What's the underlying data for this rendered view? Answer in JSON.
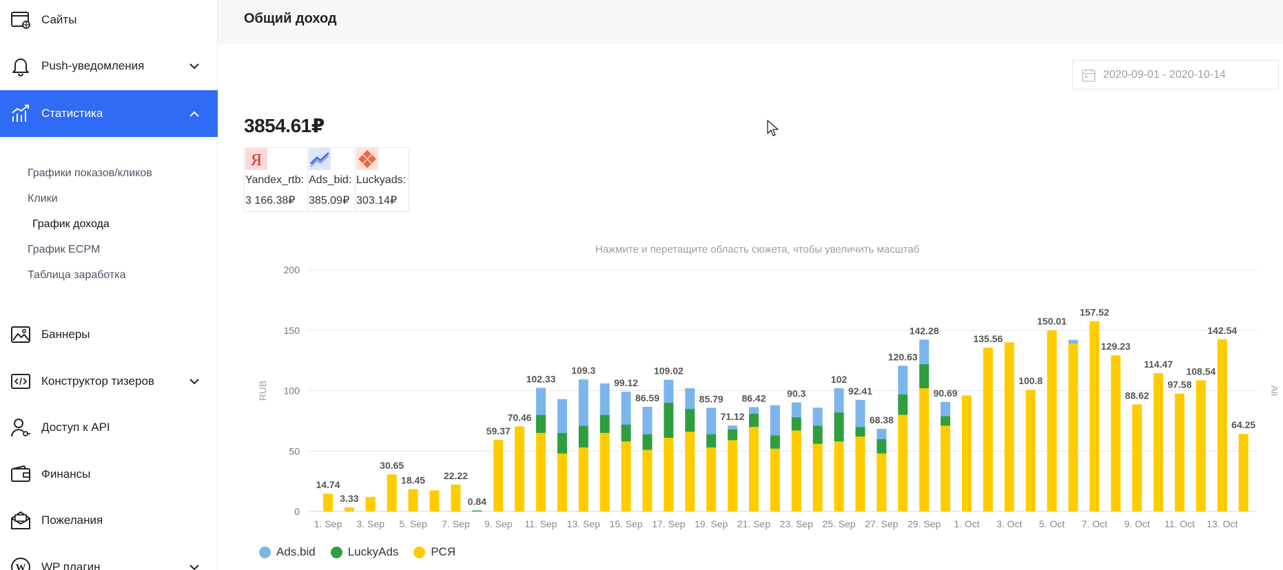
{
  "sidebar": {
    "top_items": [
      {
        "label": "Сайты",
        "icon": "site-globe-icon",
        "has_chevron": false
      },
      {
        "label": "Push-уведомления",
        "icon": "bell-icon",
        "has_chevron": true
      },
      {
        "label": "Статистика",
        "icon": "stats-chart-icon",
        "has_chevron": true,
        "active": true
      }
    ],
    "sub_items": [
      {
        "label": "Графики показов/кликов"
      },
      {
        "label": "Клики"
      },
      {
        "label": "График дохода",
        "active": true
      },
      {
        "label": "График ECPM"
      },
      {
        "label": "Таблица заработка"
      }
    ],
    "bottom_items": [
      {
        "label": "Баннеры",
        "icon": "image-icon",
        "has_chevron": false
      },
      {
        "label": "Конструктор тизеров",
        "icon": "code-window-icon",
        "has_chevron": true
      },
      {
        "label": "Доступ к API",
        "icon": "user-key-icon",
        "has_chevron": false
      },
      {
        "label": "Финансы",
        "icon": "wallet-icon",
        "has_chevron": false
      },
      {
        "label": "Пожелания",
        "icon": "mail-icon",
        "has_chevron": false
      },
      {
        "label": "WP плагин",
        "icon": "wordpress-icon",
        "has_chevron": true
      }
    ],
    "accent_color": "#2f6bf4"
  },
  "header": {
    "title": "Общий доход"
  },
  "date_range": {
    "value": "2020-09-01 - 2020-10-14"
  },
  "summary": {
    "total": "3854.61₽",
    "sources": [
      {
        "name": "Yandex_rtb:",
        "value": "3 166.38₽",
        "icon": "yandex-logo-icon"
      },
      {
        "name": "Ads_bid:",
        "value": "385.09₽",
        "icon": "adsbid-logo-icon"
      },
      {
        "name": "Luckyads:",
        "value": "303.14₽",
        "icon": "luckyads-logo-icon"
      }
    ]
  },
  "chart_hint": "Нажмите и перетащите область сюжета, чтобы увеличить масштаб",
  "chart_data": {
    "type": "bar",
    "stacked": true,
    "ylabel": "RUB",
    "right_label": "All",
    "ylim": [
      0,
      200
    ],
    "yticks": [
      0,
      50,
      100,
      150,
      200
    ],
    "grid": true,
    "legend_position": "bottom-left",
    "categories": [
      "1. Sep",
      "2. Sep",
      "3. Sep",
      "4. Sep",
      "5. Sep",
      "6. Sep",
      "7. Sep",
      "8. Sep",
      "9. Sep",
      "10. Sep",
      "11. Sep",
      "12. Sep",
      "13. Sep",
      "14. Sep",
      "15. Sep",
      "16. Sep",
      "17. Sep",
      "18. Sep",
      "19. Sep",
      "20. Sep",
      "21. Sep",
      "22. Sep",
      "23. Sep",
      "24. Sep",
      "25. Sep",
      "26. Sep",
      "27. Sep",
      "28. Sep",
      "29. Sep",
      "30. Sep",
      "1. Oct",
      "2. Oct",
      "3. Oct",
      "4. Oct",
      "5. Oct",
      "6. Oct",
      "7. Oct",
      "8. Oct",
      "9. Oct",
      "10. Oct",
      "11. Oct",
      "12. Oct",
      "13. Oct",
      "14. Oct"
    ],
    "x_tick_labels": [
      "1. Sep",
      "3. Sep",
      "5. Sep",
      "7. Sep",
      "9. Sep",
      "11. Sep",
      "13. Sep",
      "15. Sep",
      "17. Sep",
      "19. Sep",
      "21. Sep",
      "23. Sep",
      "25. Sep",
      "27. Sep",
      "29. Sep",
      "1. Oct",
      "3. Oct",
      "5. Oct",
      "7. Oct",
      "9. Oct",
      "11. Oct",
      "13. Oct"
    ],
    "series": [
      {
        "name": "РСЯ",
        "color": "#ffcc00",
        "values": [
          14.74,
          3.33,
          12,
          30.65,
          18.45,
          17.5,
          22.22,
          0,
          59.37,
          70.46,
          65,
          48,
          53,
          65,
          58,
          51,
          61,
          66,
          53,
          59,
          70,
          52,
          67,
          56,
          58,
          62,
          48,
          80,
          102,
          71,
          96,
          135.56,
          140,
          100.8,
          150.01,
          139,
          157.52,
          129.23,
          88.62,
          114.47,
          97.58,
          108.54,
          142.54,
          64.25
        ]
      },
      {
        "name": "LuckyAds",
        "color": "#2e9e3e",
        "values": [
          0,
          0,
          0,
          0,
          0,
          0,
          0,
          0.84,
          0,
          0,
          15,
          17,
          18,
          15,
          14,
          13,
          29,
          19,
          11,
          9,
          11,
          11,
          11,
          15,
          24,
          8,
          12,
          17,
          20,
          8,
          0,
          0,
          0,
          0,
          0,
          0,
          0,
          0,
          0,
          0,
          0,
          0,
          0,
          0
        ]
      },
      {
        "name": "Ads.bid",
        "color": "#7cb5ec",
        "values": [
          0,
          0,
          0,
          0,
          0,
          0,
          0,
          0,
          0,
          0,
          22.33,
          28,
          38.3,
          26,
          27.12,
          22.59,
          19.02,
          17,
          21.79,
          3.12,
          5.42,
          25,
          12.3,
          15,
          20,
          22.41,
          8.38,
          23.63,
          20.28,
          11.69,
          0,
          0,
          0,
          0,
          0,
          3,
          0,
          0,
          0,
          0,
          0,
          0,
          0,
          0
        ]
      }
    ],
    "total_labels": [
      {
        "index": 0,
        "text": "14.74"
      },
      {
        "index": 1,
        "text": "3.33"
      },
      {
        "index": 3,
        "text": "30.65"
      },
      {
        "index": 4,
        "text": "18.45"
      },
      {
        "index": 6,
        "text": "22.22"
      },
      {
        "index": 7,
        "text": "0.84"
      },
      {
        "index": 8,
        "text": "59.37"
      },
      {
        "index": 9,
        "text": "70.46"
      },
      {
        "index": 10,
        "text": "102.33"
      },
      {
        "index": 12,
        "text": "109.3"
      },
      {
        "index": 14,
        "text": "99.12"
      },
      {
        "index": 15,
        "text": "86.59"
      },
      {
        "index": 16,
        "text": "109.02"
      },
      {
        "index": 18,
        "text": "85.79"
      },
      {
        "index": 19,
        "text": "71.12"
      },
      {
        "index": 20,
        "text": "86.42"
      },
      {
        "index": 22,
        "text": "90.3"
      },
      {
        "index": 24,
        "text": "102"
      },
      {
        "index": 25,
        "text": "92.41"
      },
      {
        "index": 26,
        "text": "68.38"
      },
      {
        "index": 27,
        "text": "120.63"
      },
      {
        "index": 28,
        "text": "142.28"
      },
      {
        "index": 29,
        "text": "90.69"
      },
      {
        "index": 31,
        "text": "135.56"
      },
      {
        "index": 33,
        "text": "100.8"
      },
      {
        "index": 34,
        "text": "150.01"
      },
      {
        "index": 36,
        "text": "157.52"
      },
      {
        "index": 37,
        "text": "129.23"
      },
      {
        "index": 38,
        "text": "88.62"
      },
      {
        "index": 39,
        "text": "114.47"
      },
      {
        "index": 40,
        "text": "97.58"
      },
      {
        "index": 41,
        "text": "108.54"
      },
      {
        "index": 42,
        "text": "142.54"
      },
      {
        "index": 43,
        "text": "64.25"
      }
    ],
    "legend": [
      {
        "name": "Ads.bid",
        "color": "#7cb5ec"
      },
      {
        "name": "LuckyAds",
        "color": "#2e9e3e"
      },
      {
        "name": "РСЯ",
        "color": "#ffcc00"
      }
    ]
  }
}
